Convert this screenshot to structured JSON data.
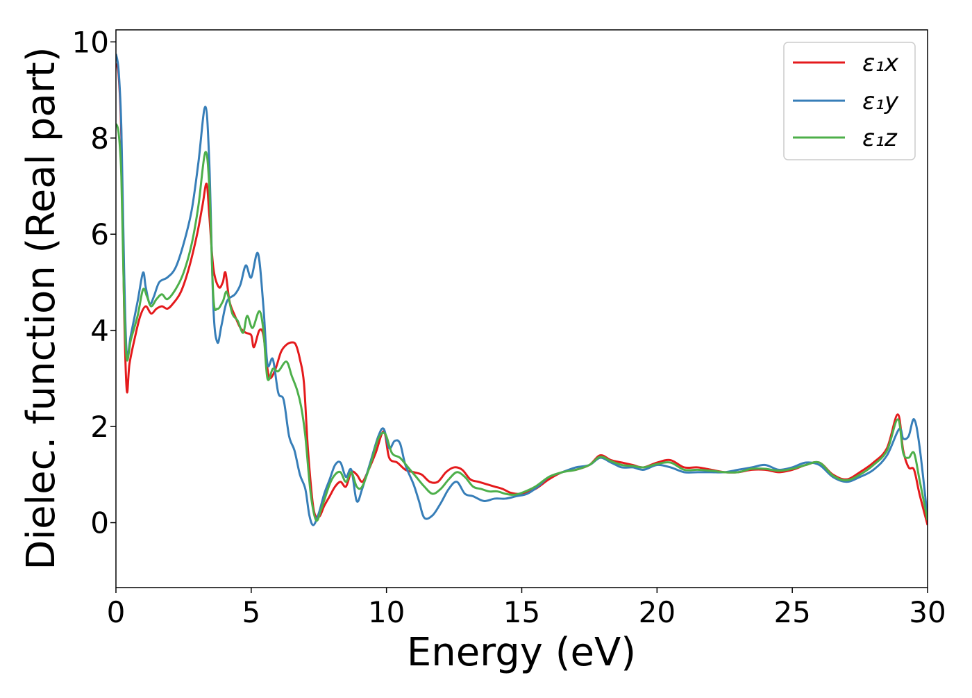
{
  "chart_data": {
    "type": "line",
    "title": "",
    "xlabel": "Energy (eV)",
    "ylabel": "Dielec. function (Real part)",
    "xlim": [
      0,
      30
    ],
    "ylim": [
      -1.35,
      10.25
    ],
    "xticks": [
      0,
      5,
      10,
      15,
      20,
      25,
      30
    ],
    "yticks": [
      0,
      2,
      4,
      6,
      8,
      10
    ],
    "grid": false,
    "legend_position": "top-right",
    "series": [
      {
        "name": "ε1x",
        "color": "#e41a1c",
        "points": [
          [
            0,
            9.55
          ],
          [
            0.1,
            9.3
          ],
          [
            0.2,
            8.0
          ],
          [
            0.3,
            4.5
          ],
          [
            0.4,
            2.75
          ],
          [
            0.5,
            3.3
          ],
          [
            0.7,
            3.85
          ],
          [
            0.9,
            4.3
          ],
          [
            1.1,
            4.5
          ],
          [
            1.3,
            4.35
          ],
          [
            1.5,
            4.45
          ],
          [
            1.7,
            4.5
          ],
          [
            1.9,
            4.45
          ],
          [
            2.1,
            4.55
          ],
          [
            2.4,
            4.8
          ],
          [
            2.7,
            5.3
          ],
          [
            3.0,
            6.0
          ],
          [
            3.2,
            6.6
          ],
          [
            3.35,
            7.05
          ],
          [
            3.45,
            6.4
          ],
          [
            3.6,
            5.3
          ],
          [
            3.8,
            4.9
          ],
          [
            3.95,
            5.0
          ],
          [
            4.05,
            5.2
          ],
          [
            4.2,
            4.6
          ],
          [
            4.4,
            4.3
          ],
          [
            4.6,
            4.05
          ],
          [
            4.8,
            3.95
          ],
          [
            5.0,
            3.9
          ],
          [
            5.1,
            3.65
          ],
          [
            5.3,
            4.0
          ],
          [
            5.45,
            3.9
          ],
          [
            5.6,
            3.2
          ],
          [
            5.7,
            3.0
          ],
          [
            5.9,
            3.2
          ],
          [
            6.1,
            3.55
          ],
          [
            6.3,
            3.7
          ],
          [
            6.5,
            3.75
          ],
          [
            6.65,
            3.7
          ],
          [
            6.8,
            3.4
          ],
          [
            6.95,
            2.9
          ],
          [
            7.1,
            1.5
          ],
          [
            7.3,
            0.3
          ],
          [
            7.5,
            0.12
          ],
          [
            7.7,
            0.35
          ],
          [
            7.9,
            0.55
          ],
          [
            8.1,
            0.75
          ],
          [
            8.3,
            0.85
          ],
          [
            8.5,
            0.75
          ],
          [
            8.7,
            1.05
          ],
          [
            8.9,
            1.0
          ],
          [
            9.1,
            0.85
          ],
          [
            9.3,
            1.05
          ],
          [
            9.6,
            1.45
          ],
          [
            9.9,
            1.9
          ],
          [
            10.1,
            1.35
          ],
          [
            10.4,
            1.25
          ],
          [
            10.7,
            1.1
          ],
          [
            11.0,
            1.05
          ],
          [
            11.3,
            1.0
          ],
          [
            11.6,
            0.85
          ],
          [
            11.9,
            0.85
          ],
          [
            12.2,
            1.05
          ],
          [
            12.5,
            1.15
          ],
          [
            12.8,
            1.1
          ],
          [
            13.1,
            0.9
          ],
          [
            13.4,
            0.85
          ],
          [
            13.7,
            0.8
          ],
          [
            14.0,
            0.75
          ],
          [
            14.3,
            0.7
          ],
          [
            14.6,
            0.62
          ],
          [
            15.0,
            0.6
          ],
          [
            15.5,
            0.7
          ],
          [
            16.0,
            0.9
          ],
          [
            16.5,
            1.05
          ],
          [
            17.0,
            1.1
          ],
          [
            17.5,
            1.2
          ],
          [
            17.9,
            1.4
          ],
          [
            18.3,
            1.3
          ],
          [
            18.7,
            1.25
          ],
          [
            19.1,
            1.2
          ],
          [
            19.5,
            1.15
          ],
          [
            20.0,
            1.25
          ],
          [
            20.5,
            1.3
          ],
          [
            21.0,
            1.15
          ],
          [
            21.5,
            1.15
          ],
          [
            22.0,
            1.1
          ],
          [
            22.5,
            1.05
          ],
          [
            23.0,
            1.05
          ],
          [
            23.5,
            1.1
          ],
          [
            24.0,
            1.1
          ],
          [
            24.5,
            1.05
          ],
          [
            25.0,
            1.1
          ],
          [
            25.5,
            1.2
          ],
          [
            26.0,
            1.25
          ],
          [
            26.5,
            1.0
          ],
          [
            27.0,
            0.9
          ],
          [
            27.5,
            1.05
          ],
          [
            28.0,
            1.25
          ],
          [
            28.5,
            1.55
          ],
          [
            28.9,
            2.25
          ],
          [
            29.1,
            1.5
          ],
          [
            29.3,
            1.15
          ],
          [
            29.5,
            1.1
          ],
          [
            29.7,
            0.6
          ],
          [
            30.0,
            -0.05
          ]
        ]
      },
      {
        "name": "ε1y",
        "color": "#377eb8",
        "points": [
          [
            0,
            9.75
          ],
          [
            0.1,
            9.4
          ],
          [
            0.2,
            8.2
          ],
          [
            0.3,
            5.3
          ],
          [
            0.4,
            3.5
          ],
          [
            0.55,
            3.9
          ],
          [
            0.8,
            4.6
          ],
          [
            1.0,
            5.2
          ],
          [
            1.1,
            4.9
          ],
          [
            1.25,
            4.55
          ],
          [
            1.4,
            4.7
          ],
          [
            1.6,
            5.0
          ],
          [
            1.9,
            5.1
          ],
          [
            2.2,
            5.3
          ],
          [
            2.5,
            5.8
          ],
          [
            2.8,
            6.5
          ],
          [
            3.05,
            7.5
          ],
          [
            3.3,
            8.65
          ],
          [
            3.45,
            7.5
          ],
          [
            3.6,
            4.5
          ],
          [
            3.75,
            3.75
          ],
          [
            3.9,
            4.1
          ],
          [
            4.1,
            4.6
          ],
          [
            4.4,
            4.75
          ],
          [
            4.6,
            4.95
          ],
          [
            4.8,
            5.35
          ],
          [
            5.0,
            5.1
          ],
          [
            5.25,
            5.6
          ],
          [
            5.45,
            4.5
          ],
          [
            5.6,
            3.3
          ],
          [
            5.8,
            3.4
          ],
          [
            6.0,
            2.7
          ],
          [
            6.2,
            2.55
          ],
          [
            6.4,
            1.8
          ],
          [
            6.6,
            1.5
          ],
          [
            6.8,
            1.0
          ],
          [
            7.0,
            0.7
          ],
          [
            7.15,
            0.15
          ],
          [
            7.3,
            -0.05
          ],
          [
            7.5,
            0.2
          ],
          [
            7.7,
            0.6
          ],
          [
            7.9,
            0.9
          ],
          [
            8.1,
            1.2
          ],
          [
            8.3,
            1.25
          ],
          [
            8.5,
            0.95
          ],
          [
            8.7,
            1.1
          ],
          [
            8.9,
            0.45
          ],
          [
            9.1,
            0.7
          ],
          [
            9.4,
            1.25
          ],
          [
            9.7,
            1.8
          ],
          [
            9.9,
            1.95
          ],
          [
            10.1,
            1.55
          ],
          [
            10.3,
            1.7
          ],
          [
            10.5,
            1.65
          ],
          [
            10.7,
            1.2
          ],
          [
            11.0,
            0.8
          ],
          [
            11.2,
            0.45
          ],
          [
            11.4,
            0.1
          ],
          [
            11.7,
            0.15
          ],
          [
            12.0,
            0.4
          ],
          [
            12.3,
            0.7
          ],
          [
            12.6,
            0.85
          ],
          [
            12.9,
            0.6
          ],
          [
            13.2,
            0.55
          ],
          [
            13.6,
            0.45
          ],
          [
            14.0,
            0.5
          ],
          [
            14.4,
            0.5
          ],
          [
            14.8,
            0.55
          ],
          [
            15.2,
            0.6
          ],
          [
            15.6,
            0.75
          ],
          [
            16.0,
            0.95
          ],
          [
            16.5,
            1.05
          ],
          [
            17.0,
            1.15
          ],
          [
            17.5,
            1.2
          ],
          [
            17.9,
            1.35
          ],
          [
            18.3,
            1.25
          ],
          [
            18.7,
            1.15
          ],
          [
            19.1,
            1.15
          ],
          [
            19.5,
            1.1
          ],
          [
            20.0,
            1.2
          ],
          [
            20.5,
            1.15
          ],
          [
            21.0,
            1.05
          ],
          [
            21.5,
            1.05
          ],
          [
            22.0,
            1.05
          ],
          [
            22.5,
            1.05
          ],
          [
            23.0,
            1.1
          ],
          [
            23.5,
            1.15
          ],
          [
            24.0,
            1.2
          ],
          [
            24.5,
            1.1
          ],
          [
            25.0,
            1.15
          ],
          [
            25.5,
            1.25
          ],
          [
            26.0,
            1.2
          ],
          [
            26.5,
            0.95
          ],
          [
            27.0,
            0.85
          ],
          [
            27.5,
            0.95
          ],
          [
            28.0,
            1.1
          ],
          [
            28.5,
            1.4
          ],
          [
            28.95,
            1.95
          ],
          [
            29.1,
            1.75
          ],
          [
            29.3,
            1.8
          ],
          [
            29.5,
            2.15
          ],
          [
            29.7,
            1.6
          ],
          [
            30.0,
            0.1
          ]
        ]
      },
      {
        "name": "ε1z",
        "color": "#4daf4a",
        "points": [
          [
            0,
            8.3
          ],
          [
            0.1,
            8.1
          ],
          [
            0.2,
            7.2
          ],
          [
            0.3,
            4.6
          ],
          [
            0.4,
            3.4
          ],
          [
            0.55,
            3.8
          ],
          [
            0.8,
            4.3
          ],
          [
            1.0,
            4.85
          ],
          [
            1.15,
            4.7
          ],
          [
            1.3,
            4.5
          ],
          [
            1.5,
            4.65
          ],
          [
            1.7,
            4.75
          ],
          [
            1.9,
            4.65
          ],
          [
            2.2,
            4.85
          ],
          [
            2.5,
            5.2
          ],
          [
            2.8,
            5.8
          ],
          [
            3.05,
            6.6
          ],
          [
            3.3,
            7.7
          ],
          [
            3.45,
            7.0
          ],
          [
            3.6,
            4.7
          ],
          [
            3.75,
            4.45
          ],
          [
            3.95,
            4.6
          ],
          [
            4.1,
            4.8
          ],
          [
            4.3,
            4.35
          ],
          [
            4.5,
            4.2
          ],
          [
            4.7,
            3.95
          ],
          [
            4.85,
            4.3
          ],
          [
            5.05,
            4.05
          ],
          [
            5.3,
            4.4
          ],
          [
            5.45,
            4.0
          ],
          [
            5.6,
            3.0
          ],
          [
            5.8,
            3.2
          ],
          [
            6.0,
            3.15
          ],
          [
            6.3,
            3.35
          ],
          [
            6.5,
            3.05
          ],
          [
            6.7,
            2.75
          ],
          [
            6.85,
            2.4
          ],
          [
            7.0,
            1.8
          ],
          [
            7.2,
            0.6
          ],
          [
            7.4,
            0.05
          ],
          [
            7.6,
            0.3
          ],
          [
            7.9,
            0.8
          ],
          [
            8.1,
            1.0
          ],
          [
            8.3,
            1.05
          ],
          [
            8.5,
            0.85
          ],
          [
            8.7,
            1.05
          ],
          [
            8.9,
            0.75
          ],
          [
            9.1,
            0.75
          ],
          [
            9.4,
            1.2
          ],
          [
            9.7,
            1.75
          ],
          [
            9.95,
            1.85
          ],
          [
            10.2,
            1.45
          ],
          [
            10.5,
            1.35
          ],
          [
            10.8,
            1.15
          ],
          [
            11.1,
            0.95
          ],
          [
            11.4,
            0.75
          ],
          [
            11.7,
            0.6
          ],
          [
            12.0,
            0.7
          ],
          [
            12.3,
            0.9
          ],
          [
            12.6,
            1.05
          ],
          [
            12.9,
            0.95
          ],
          [
            13.2,
            0.75
          ],
          [
            13.5,
            0.7
          ],
          [
            13.8,
            0.65
          ],
          [
            14.1,
            0.65
          ],
          [
            14.4,
            0.6
          ],
          [
            14.7,
            0.58
          ],
          [
            15.0,
            0.62
          ],
          [
            15.5,
            0.75
          ],
          [
            16.0,
            0.95
          ],
          [
            16.5,
            1.05
          ],
          [
            17.0,
            1.1
          ],
          [
            17.5,
            1.2
          ],
          [
            17.9,
            1.37
          ],
          [
            18.3,
            1.28
          ],
          [
            18.7,
            1.2
          ],
          [
            19.1,
            1.18
          ],
          [
            19.5,
            1.15
          ],
          [
            20.0,
            1.22
          ],
          [
            20.5,
            1.25
          ],
          [
            21.0,
            1.1
          ],
          [
            21.5,
            1.1
          ],
          [
            22.0,
            1.08
          ],
          [
            22.5,
            1.05
          ],
          [
            23.0,
            1.05
          ],
          [
            23.5,
            1.12
          ],
          [
            24.0,
            1.12
          ],
          [
            24.5,
            1.08
          ],
          [
            25.0,
            1.12
          ],
          [
            25.5,
            1.2
          ],
          [
            26.0,
            1.25
          ],
          [
            26.5,
            0.98
          ],
          [
            27.0,
            0.88
          ],
          [
            27.5,
            1.0
          ],
          [
            28.0,
            1.2
          ],
          [
            28.5,
            1.5
          ],
          [
            28.9,
            2.15
          ],
          [
            29.1,
            1.45
          ],
          [
            29.3,
            1.35
          ],
          [
            29.5,
            1.45
          ],
          [
            29.7,
            0.9
          ],
          [
            30.0,
            0.05
          ]
        ]
      }
    ]
  },
  "legend": {
    "entries": [
      {
        "label": "ε₁x",
        "color": "#e41a1c"
      },
      {
        "label": "ε₁y",
        "color": "#377eb8"
      },
      {
        "label": "ε₁z",
        "color": "#4daf4a"
      }
    ]
  }
}
